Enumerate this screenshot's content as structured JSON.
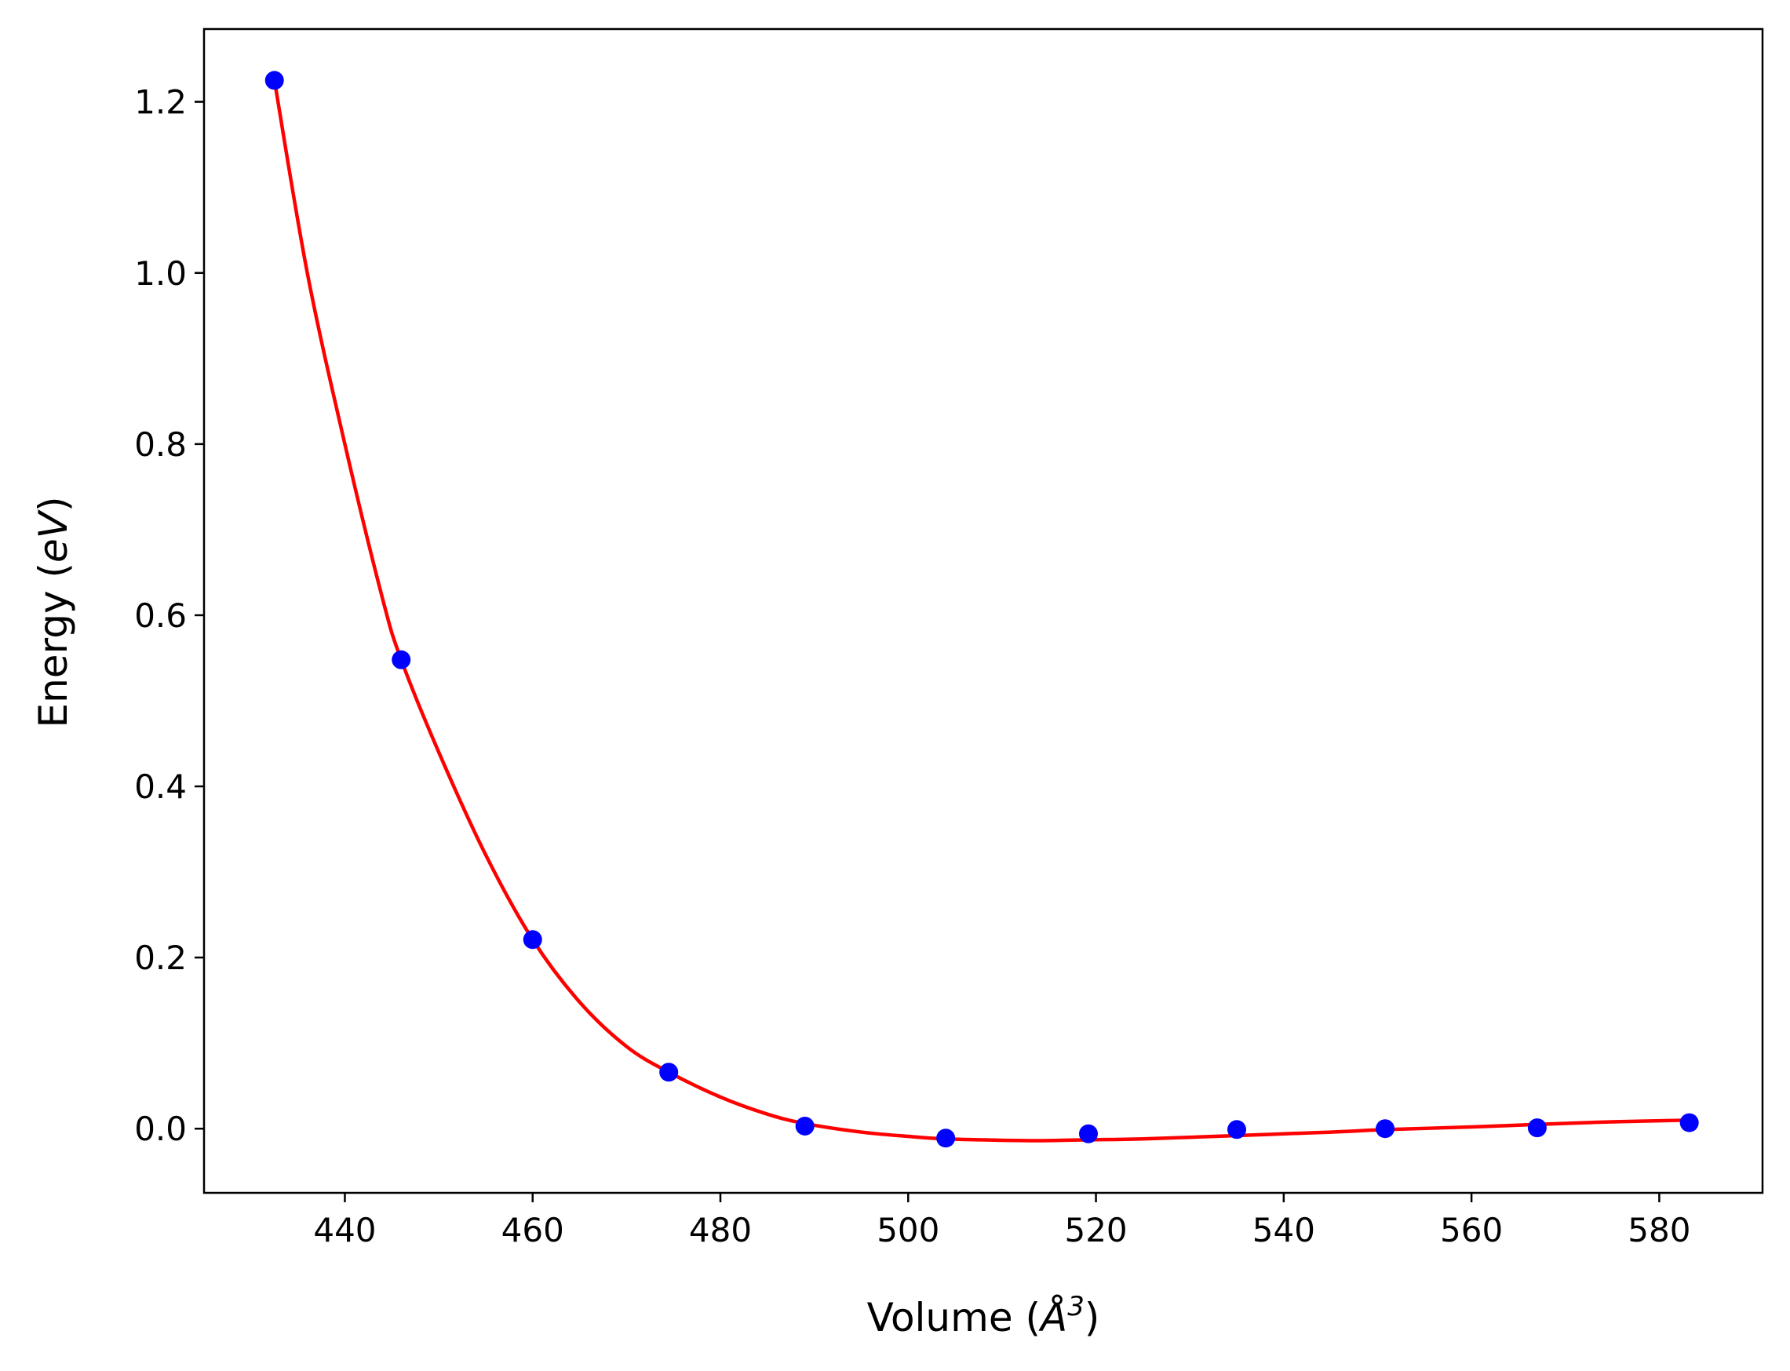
{
  "chart_data": {
    "type": "line",
    "xlabel": "Volume (Å³)",
    "xlabel_parts": {
      "pre": "Volume (",
      "symbol": "Å",
      "sup": "3",
      "post": ")"
    },
    "ylabel": "Energy (eV)",
    "ylabel_parts": {
      "pre": "Energy (",
      "unit": "eV",
      "post": ")"
    },
    "xlim": [
      425,
      591
    ],
    "ylim": [
      -0.075,
      1.285
    ],
    "xticks": [
      440,
      460,
      480,
      500,
      520,
      540,
      560,
      580
    ],
    "yticks": [
      0.0,
      0.2,
      0.4,
      0.6,
      0.8,
      1.0,
      1.2
    ],
    "xtick_labels": [
      "440",
      "460",
      "480",
      "500",
      "520",
      "540",
      "560",
      "580"
    ],
    "ytick_labels": [
      "0.0",
      "0.2",
      "0.4",
      "0.6",
      "0.8",
      "1.0",
      "1.2"
    ],
    "grid": false,
    "legend": "none",
    "series": [
      {
        "kind": "scatter",
        "color": "#0000ff",
        "x": [
          432.5,
          446.0,
          460.0,
          474.5,
          489.0,
          504.0,
          519.2,
          535.0,
          550.8,
          567.0,
          583.2
        ],
        "y": [
          1.225,
          0.548,
          0.221,
          0.066,
          0.003,
          -0.011,
          -0.006,
          -0.001,
          0.0,
          0.001,
          0.007
        ]
      },
      {
        "kind": "line",
        "color": "#ff0000",
        "x": [
          432.5,
          436.0,
          440.0,
          444.0,
          446.0,
          450.0,
          455.0,
          460.0,
          465.0,
          470.0,
          474.5,
          480.0,
          485.0,
          489.0,
          495.0,
          500.0,
          504.0,
          510.0,
          514.0,
          519.0,
          525.0,
          535.0,
          545.0,
          551.0,
          560.0,
          567.0,
          575.0,
          583.2
        ],
        "y": [
          1.225,
          1.0,
          0.8,
          0.62,
          0.548,
          0.44,
          0.32,
          0.221,
          0.148,
          0.096,
          0.066,
          0.037,
          0.017,
          0.006,
          -0.004,
          -0.009,
          -0.012,
          -0.0135,
          -0.014,
          -0.013,
          -0.012,
          -0.008,
          -0.004,
          -0.001,
          0.002,
          0.005,
          0.008,
          0.01
        ]
      }
    ]
  }
}
